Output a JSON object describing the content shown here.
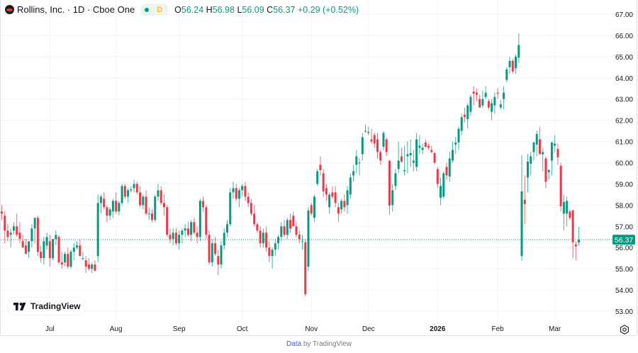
{
  "legend": {
    "title": "Rollins, Inc. · 1D · Cboe One",
    "interval_badge": "D",
    "open_label": "O",
    "open": "56.24",
    "high_label": "H",
    "high": "56.98",
    "low_label": "L",
    "low": "56.09",
    "close_label": "C",
    "close": "56.37",
    "change": "+0.29 (+0.52%)"
  },
  "logo_text": "TradingView",
  "footer": {
    "link": "Data",
    "text": "by TradingView"
  },
  "colors": {
    "up": "#089981",
    "down": "#F23645",
    "grid": "#f0f3fa",
    "last_price": "#089981"
  },
  "icons": {
    "settings": "gear-icon",
    "brand": "tradingview-logo"
  },
  "chart_data": {
    "type": "candlestick",
    "fields": [
      "open",
      "high",
      "low",
      "close"
    ],
    "ylim": [
      53,
      67
    ],
    "y_ticks": [
      "67.00",
      "66.00",
      "65.00",
      "64.00",
      "63.00",
      "62.00",
      "61.00",
      "60.00",
      "59.00",
      "58.00",
      "57.00",
      "56.00",
      "55.00",
      "54.00",
      "53.00"
    ],
    "x_ticks": [
      {
        "label": "Jul",
        "index": 16
      },
      {
        "label": "Aug",
        "index": 38
      },
      {
        "label": "Sep",
        "index": 59
      },
      {
        "label": "Oct",
        "index": 80
      },
      {
        "label": "Nov",
        "index": 103
      },
      {
        "label": "Dec",
        "index": 122
      },
      {
        "label": "2026",
        "index": 145
      },
      {
        "label": "Feb",
        "index": 165
      },
      {
        "label": "Mar",
        "index": 184
      }
    ],
    "last_price": "56.37",
    "grid": true,
    "candles": [
      [
        57.7,
        58.0,
        57.3,
        57.6
      ],
      [
        57.5,
        57.7,
        56.2,
        56.8
      ],
      [
        56.8,
        57.1,
        56.3,
        56.5
      ],
      [
        56.6,
        56.9,
        56.0,
        56.7
      ],
      [
        56.8,
        57.2,
        56.6,
        57.0
      ],
      [
        57.0,
        57.6,
        56.5,
        56.6
      ],
      [
        56.7,
        57.2,
        56.2,
        56.4
      ],
      [
        56.3,
        56.6,
        56.0,
        56.0
      ],
      [
        56.1,
        56.4,
        55.7,
        55.7
      ],
      [
        55.8,
        56.2,
        55.5,
        56.3
      ],
      [
        56.3,
        57.1,
        56.0,
        56.9
      ],
      [
        56.9,
        57.4,
        56.2,
        57.4
      ],
      [
        57.4,
        57.5,
        55.6,
        55.8
      ],
      [
        55.8,
        56.1,
        55.3,
        55.5
      ],
      [
        55.5,
        56.5,
        55.2,
        56.3
      ],
      [
        56.1,
        56.7,
        55.9,
        56.5
      ],
      [
        56.3,
        56.6,
        55.1,
        55.5
      ],
      [
        55.5,
        56.4,
        55.4,
        56.4
      ],
      [
        56.4,
        56.8,
        56.1,
        56.6
      ],
      [
        56.5,
        56.6,
        55.2,
        55.3
      ],
      [
        55.3,
        55.8,
        55.0,
        55.2
      ],
      [
        55.3,
        55.8,
        55.1,
        55.7
      ],
      [
        55.7,
        56.0,
        55.0,
        55.1
      ],
      [
        55.1,
        55.9,
        55.0,
        55.8
      ],
      [
        55.8,
        56.2,
        55.4,
        56.0
      ],
      [
        56.0,
        56.3,
        55.9,
        56.1
      ],
      [
        56.1,
        56.4,
        55.6,
        55.6
      ],
      [
        55.5,
        55.8,
        55.4,
        55.5
      ],
      [
        55.4,
        55.6,
        54.8,
        55.1
      ],
      [
        55.2,
        55.5,
        54.9,
        55.0
      ],
      [
        55.0,
        55.3,
        54.8,
        55.2
      ],
      [
        55.2,
        55.4,
        54.9,
        54.9
      ],
      [
        55.6,
        58.5,
        55.3,
        58.1
      ],
      [
        58.1,
        58.5,
        57.6,
        58.4
      ],
      [
        58.3,
        58.6,
        57.8,
        57.9
      ],
      [
        57.9,
        58.0,
        57.2,
        57.5
      ],
      [
        57.5,
        57.9,
        57.3,
        57.8
      ],
      [
        57.7,
        58.3,
        57.4,
        58.2
      ],
      [
        58.2,
        58.6,
        57.6,
        57.7
      ],
      [
        57.7,
        58.2,
        57.5,
        58.1
      ],
      [
        58.1,
        59.0,
        58.0,
        58.9
      ],
      [
        58.9,
        59.0,
        58.3,
        58.4
      ],
      [
        58.4,
        58.8,
        58.1,
        58.7
      ],
      [
        58.7,
        58.9,
        58.6,
        58.75
      ],
      [
        58.8,
        59.2,
        58.6,
        59.0
      ],
      [
        59.0,
        59.1,
        58.5,
        58.6
      ],
      [
        58.6,
        58.9,
        57.9,
        58.0
      ],
      [
        58.0,
        58.5,
        57.8,
        58.4
      ],
      [
        58.4,
        58.7,
        57.5,
        57.6
      ],
      [
        57.6,
        57.9,
        57.3,
        57.6
      ],
      [
        57.6,
        57.8,
        57.2,
        57.3
      ],
      [
        57.3,
        58.5,
        57.2,
        58.4
      ],
      [
        58.4,
        59.0,
        58.2,
        58.7
      ],
      [
        58.7,
        58.9,
        58.0,
        58.1
      ],
      [
        58.1,
        58.5,
        57.5,
        57.9
      ],
      [
        57.9,
        58.0,
        56.5,
        56.6
      ],
      [
        56.6,
        56.9,
        56.2,
        56.4
      ],
      [
        56.4,
        56.9,
        56.1,
        56.7
      ],
      [
        56.7,
        56.9,
        56.1,
        56.2
      ],
      [
        56.2,
        56.8,
        55.9,
        56.6
      ],
      [
        56.6,
        56.9,
        56.2,
        56.8
      ],
      [
        56.8,
        57.1,
        56.5,
        56.9
      ],
      [
        56.9,
        57.2,
        56.5,
        56.6
      ],
      [
        56.6,
        57.3,
        56.3,
        57.2
      ],
      [
        57.2,
        57.4,
        56.6,
        56.7
      ],
      [
        56.7,
        57.0,
        56.2,
        56.5
      ],
      [
        56.5,
        58.3,
        56.3,
        58.2
      ],
      [
        58.2,
        58.4,
        57.7,
        57.9
      ],
      [
        57.9,
        58.0,
        56.4,
        56.6
      ],
      [
        56.6,
        56.8,
        55.2,
        55.3
      ],
      [
        55.3,
        56.4,
        55.1,
        56.2
      ],
      [
        56.2,
        56.5,
        55.6,
        55.7
      ],
      [
        55.6,
        55.9,
        54.7,
        55.2
      ],
      [
        55.2,
        56.3,
        55.0,
        56.1
      ],
      [
        56.1,
        56.9,
        55.9,
        56.7
      ],
      [
        56.7,
        57.3,
        56.5,
        57.1
      ],
      [
        57.1,
        58.8,
        57.0,
        58.6
      ],
      [
        58.6,
        59.1,
        58.3,
        58.8
      ],
      [
        58.8,
        59.0,
        58.2,
        58.3
      ],
      [
        58.3,
        58.8,
        57.9,
        58.7
      ],
      [
        58.7,
        59.0,
        58.4,
        58.9
      ],
      [
        58.9,
        59.1,
        58.2,
        58.4
      ],
      [
        58.4,
        58.6,
        57.9,
        58.1
      ],
      [
        58.1,
        58.3,
        57.5,
        57.6
      ],
      [
        57.6,
        58.0,
        57.0,
        57.1
      ],
      [
        57.1,
        57.2,
        56.7,
        56.8
      ],
      [
        56.8,
        57.0,
        56.0,
        56.2
      ],
      [
        56.2,
        56.9,
        56.0,
        56.7
      ],
      [
        56.7,
        57.0,
        55.8,
        56.0
      ],
      [
        56.0,
        56.3,
        55.3,
        55.6
      ],
      [
        55.6,
        56.0,
        55.0,
        55.9
      ],
      [
        55.9,
        56.4,
        55.6,
        56.2
      ],
      [
        56.2,
        56.6,
        55.9,
        56.5
      ],
      [
        56.5,
        57.2,
        56.3,
        57.0
      ],
      [
        57.0,
        57.3,
        56.5,
        56.6
      ],
      [
        56.6,
        57.4,
        56.4,
        57.3
      ],
      [
        57.3,
        57.6,
        56.7,
        56.9
      ],
      [
        57.5,
        57.7,
        57.0,
        57.0
      ],
      [
        57.0,
        57.2,
        56.5,
        56.6
      ],
      [
        56.6,
        56.8,
        56.2,
        56.4
      ],
      [
        56.3,
        56.6,
        55.9,
        56.3
      ],
      [
        56.25,
        56.4,
        53.7,
        53.8
      ],
      [
        55.1,
        57.9,
        54.9,
        57.75
      ],
      [
        58.0,
        58.1,
        57.5,
        57.6
      ],
      [
        57.4,
        58.5,
        57.2,
        58.4
      ],
      [
        59.0,
        59.7,
        58.9,
        59.6
      ],
      [
        59.9,
        60.3,
        59.4,
        59.65
      ],
      [
        59.5,
        59.7,
        58.4,
        58.65
      ],
      [
        58.8,
        59.0,
        58.2,
        58.5
      ],
      [
        57.9,
        58.6,
        57.6,
        58.5
      ],
      [
        58.6,
        58.9,
        58.3,
        58.4
      ],
      [
        58.6,
        58.9,
        57.9,
        58.1
      ],
      [
        57.9,
        58.1,
        57.2,
        57.6
      ],
      [
        57.8,
        58.3,
        57.6,
        58.2
      ],
      [
        58.2,
        58.5,
        57.7,
        57.9
      ],
      [
        58.0,
        58.9,
        57.6,
        58.7
      ],
      [
        58.5,
        59.5,
        58.3,
        59.3
      ],
      [
        59.4,
        59.9,
        59.1,
        59.6
      ],
      [
        59.9,
        60.6,
        59.5,
        60.3
      ],
      [
        60.0,
        60.2,
        59.4,
        60.0
      ],
      [
        60.4,
        61.4,
        60.1,
        61.2
      ],
      [
        61.5,
        61.8,
        61.4,
        61.5
      ],
      [
        61.4,
        61.7,
        61.3,
        61.45
      ],
      [
        61.1,
        61.6,
        60.9,
        61.0
      ],
      [
        61.3,
        61.4,
        60.7,
        60.9
      ],
      [
        61.1,
        61.4,
        60.2,
        60.5
      ],
      [
        60.5,
        60.6,
        59.9,
        60.1
      ],
      [
        60.75,
        61.5,
        60.6,
        61.4
      ],
      [
        61.1,
        61.2,
        60.3,
        60.5
      ],
      [
        60.1,
        60.1,
        57.55,
        57.98
      ],
      [
        58.0,
        59.0,
        57.7,
        58.7
      ],
      [
        58.9,
        59.7,
        58.7,
        59.5
      ],
      [
        59.7,
        61.0,
        59.5,
        60.1
      ],
      [
        60.3,
        60.7,
        60.0,
        60.05
      ],
      [
        59.6,
        60.8,
        59.4,
        59.65
      ],
      [
        60.3,
        61.0,
        59.5,
        60.4
      ],
      [
        60.35,
        61.1,
        59.8,
        60.45
      ],
      [
        60.0,
        60.6,
        59.6,
        60.1
      ],
      [
        59.8,
        61.4,
        59.6,
        61.1
      ],
      [
        60.7,
        61.3,
        60.4,
        60.8
      ],
      [
        60.6,
        60.9,
        60.4,
        60.7
      ],
      [
        60.95,
        61.1,
        60.7,
        60.75
      ],
      [
        60.8,
        60.9,
        60.6,
        60.7
      ],
      [
        60.6,
        60.8,
        60.45,
        60.5
      ],
      [
        60.45,
        60.5,
        59.9,
        60.0
      ],
      [
        59.7,
        59.8,
        58.8,
        59.0
      ],
      [
        58.35,
        59.3,
        58.0,
        58.9
      ],
      [
        58.4,
        59.6,
        58.3,
        59.5
      ],
      [
        59.8,
        60.0,
        59.2,
        59.4
      ],
      [
        59.35,
        60.5,
        59.1,
        60.2
      ],
      [
        60.1,
        61.0,
        60.0,
        60.6
      ],
      [
        60.85,
        61.2,
        60.4,
        60.95
      ],
      [
        60.95,
        61.7,
        60.6,
        61.6
      ],
      [
        61.5,
        62.3,
        61.3,
        62.15
      ],
      [
        62.25,
        62.6,
        61.9,
        62.15
      ],
      [
        62.05,
        62.8,
        61.6,
        62.7
      ],
      [
        62.4,
        63.2,
        62.2,
        63.1
      ],
      [
        63.35,
        63.6,
        62.7,
        63.25
      ],
      [
        63.3,
        63.5,
        62.9,
        63.2
      ],
      [
        63.0,
        63.2,
        62.6,
        62.6
      ],
      [
        62.7,
        63.4,
        62.6,
        63.0
      ],
      [
        63.1,
        63.6,
        63.0,
        63.3
      ],
      [
        62.9,
        63.0,
        62.5,
        62.6
      ],
      [
        62.4,
        63.0,
        62.0,
        62.8
      ],
      [
        62.7,
        63.3,
        62.3,
        63.1
      ],
      [
        63.3,
        63.5,
        63.0,
        63.25
      ],
      [
        62.6,
        62.95,
        62.5,
        62.75
      ],
      [
        63.0,
        63.6,
        62.5,
        63.3
      ],
      [
        63.9,
        64.5,
        63.8,
        64.4
      ],
      [
        64.5,
        65.0,
        64.2,
        64.8
      ],
      [
        64.8,
        64.9,
        64.2,
        64.3
      ],
      [
        64.45,
        65.1,
        64.2,
        65.0
      ],
      [
        64.95,
        66.1,
        64.7,
        65.55
      ],
      [
        55.6,
        60.35,
        55.37,
        58.65
      ],
      [
        58.25,
        59.4,
        57.1,
        58.05
      ],
      [
        59.3,
        60.4,
        58.6,
        60.05
      ],
      [
        59.95,
        60.5,
        59.4,
        60.3
      ],
      [
        60.5,
        61.0,
        60.1,
        60.95
      ],
      [
        60.85,
        61.5,
        60.3,
        61.35
      ],
      [
        61.1,
        61.7,
        60.4,
        60.4
      ],
      [
        60.4,
        60.7,
        59.6,
        60.5
      ],
      [
        60.2,
        60.3,
        58.8,
        59.1
      ],
      [
        59.55,
        59.7,
        59.2,
        59.65
      ],
      [
        60.1,
        61.0,
        59.4,
        60.95
      ],
      [
        60.8,
        61.3,
        60.5,
        60.9
      ],
      [
        60.65,
        60.9,
        59.9,
        60.25
      ],
      [
        59.85,
        60.0,
        57.7,
        57.95
      ],
      [
        57.6,
        58.5,
        56.8,
        58.15
      ],
      [
        57.6,
        58.4,
        57.0,
        58.2
      ],
      [
        57.7,
        57.8,
        57.3,
        57.4
      ],
      [
        57.75,
        57.8,
        55.5,
        56.25
      ],
      [
        56.15,
        56.3,
        55.4,
        56.05
      ],
      [
        56.24,
        56.98,
        56.09,
        56.37
      ]
    ]
  }
}
